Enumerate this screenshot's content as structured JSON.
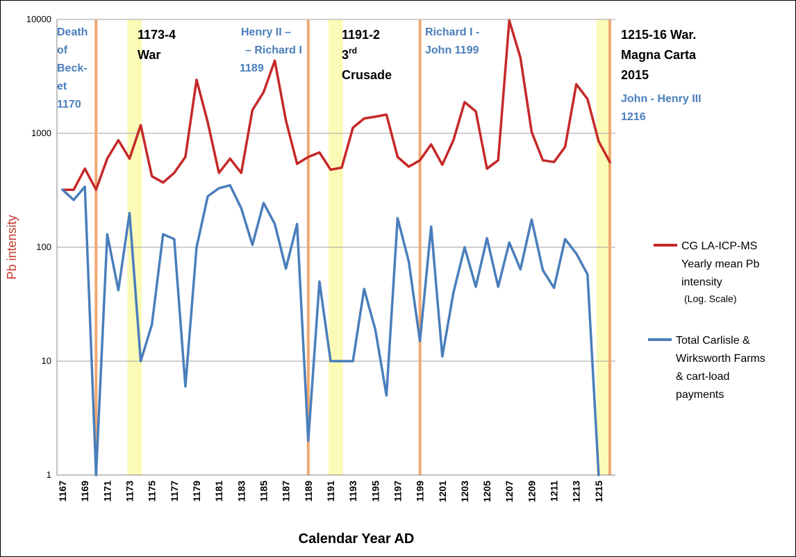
{
  "chart_data": {
    "type": "line",
    "xlabel": "Calendar Year AD",
    "ylabel": "Pb intensity",
    "yscale": "log",
    "ylim": [
      1,
      10000
    ],
    "xlim": [
      1166.5,
      1216.5
    ],
    "y_ticks": [
      "1",
      "10",
      "100",
      "1000",
      "10000"
    ],
    "y_tick_values": [
      1,
      10,
      100,
      1000,
      10000
    ],
    "x_ticks": [
      "1167",
      "1169",
      "1171",
      "1173",
      "1175",
      "1177",
      "1179",
      "1181",
      "1183",
      "1185",
      "1187",
      "1189",
      "1191",
      "1193",
      "1195",
      "1197",
      "1199",
      "1201",
      "1203",
      "1205",
      "1207",
      "1209",
      "1211",
      "1213",
      "1215"
    ],
    "x_tick_values": [
      1167,
      1169,
      1171,
      1173,
      1175,
      1177,
      1179,
      1181,
      1183,
      1185,
      1187,
      1189,
      1191,
      1193,
      1195,
      1197,
      1199,
      1201,
      1203,
      1205,
      1207,
      1209,
      1211,
      1213,
      1215
    ],
    "colors": {
      "red_series": "#c62828",
      "blue_series": "#4a7ebb",
      "orange_marker": "#f0a870",
      "yellow_band": "#fafaaa",
      "grid": "#a0a0a0",
      "ann_blue": "#4a7ebb",
      "ylabel": "#c0392b"
    },
    "series": [
      {
        "name": "CG LA-ICP-MS Yearly mean Pb intensity (Log. Scale)",
        "color": "#c62828",
        "x": [
          1167,
          1168,
          1169,
          1170,
          1171,
          1172,
          1173,
          1174,
          1175,
          1176,
          1177,
          1178,
          1179,
          1180,
          1181,
          1182,
          1183,
          1184,
          1185,
          1186,
          1187,
          1188,
          1189,
          1190,
          1191,
          1192,
          1193,
          1194,
          1195,
          1196,
          1197,
          1198,
          1199,
          1200,
          1201,
          1202,
          1203,
          1204,
          1205,
          1206,
          1207,
          1208,
          1209,
          1210,
          1211,
          1212,
          1213,
          1214,
          1215,
          1216
        ],
        "values": [
          320,
          320,
          490,
          320,
          600,
          870,
          600,
          1180,
          420,
          370,
          450,
          620,
          2950,
          1250,
          450,
          600,
          450,
          1600,
          2300,
          4350,
          1300,
          540,
          620,
          680,
          480,
          500,
          1120,
          1350,
          1400,
          1460,
          620,
          510,
          580,
          800,
          530,
          870,
          1880,
          1560,
          490,
          580,
          9800,
          4600,
          1030,
          580,
          560,
          760,
          2700,
          2000,
          850,
          560
        ]
      },
      {
        "name": "Total Carlisle & Wirksworth Farms & cart-load payments",
        "color": "#4a7ebb",
        "x": [
          1167,
          1168,
          1169,
          1170,
          1171,
          1172,
          1173,
          1174,
          1175,
          1176,
          1177,
          1178,
          1179,
          1180,
          1181,
          1182,
          1183,
          1184,
          1185,
          1186,
          1187,
          1188,
          1189,
          1190,
          1191,
          1192,
          1193,
          1194,
          1195,
          1196,
          1197,
          1198,
          1199,
          1200,
          1201,
          1202,
          1203,
          1204,
          1205,
          1206,
          1207,
          1208,
          1209,
          1210,
          1211,
          1212,
          1213,
          1214,
          1215
        ],
        "values": [
          320,
          260,
          340,
          1,
          130,
          42,
          200,
          10,
          21,
          130,
          118,
          6,
          100,
          280,
          330,
          350,
          220,
          105,
          245,
          160,
          65,
          160,
          2,
          50,
          10,
          10,
          10,
          43,
          19,
          5,
          180,
          75,
          15,
          152,
          11,
          40,
          100,
          45,
          120,
          45,
          110,
          64,
          175,
          63,
          44,
          118,
          88,
          58,
          1
        ]
      }
    ],
    "event_lines": [
      1170,
      1189,
      1199,
      1216
    ],
    "bands": [
      [
        1172.8,
        1174.1
      ],
      [
        1190.8,
        1192.1
      ],
      [
        1214.8,
        1216.1
      ]
    ],
    "annotations": {
      "becket": [
        "Death",
        "of",
        "Beck-",
        "et",
        "1170"
      ],
      "war_1173": [
        "1173-4",
        "War"
      ],
      "henry_richard": [
        "Henry II –",
        "– Richard I",
        "1189"
      ],
      "crusade_main": "1191-2",
      "crusade_num": "3",
      "crusade_sup": "rd",
      "crusade_word": "Crusade",
      "richard_john": [
        "Richard I -",
        "John 1199"
      ],
      "magna_carta": [
        "1215-16 War.",
        "Magna Carta",
        "2015"
      ],
      "john_henry": [
        "John - Henry III",
        "1216"
      ]
    },
    "legend": {
      "red": [
        "CG LA-ICP-MS",
        "Yearly mean Pb",
        "intensity"
      ],
      "red_small": "(Log. Scale)",
      "blue": [
        "Total Carlisle &",
        "Wirksworth Farms",
        "& cart-load",
        "payments"
      ]
    }
  }
}
